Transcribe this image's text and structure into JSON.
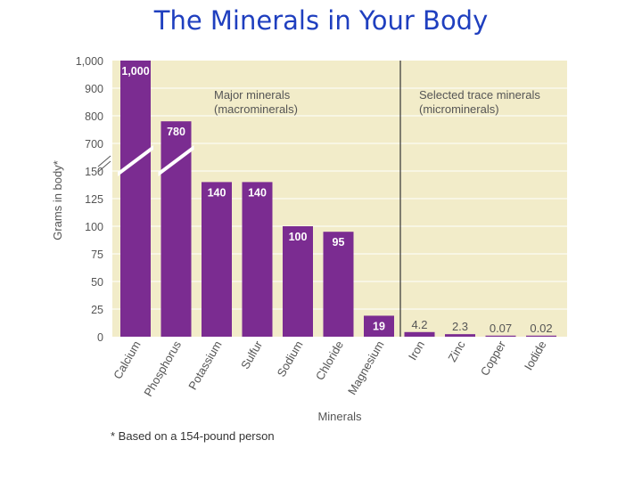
{
  "slide": {
    "title": "The Minerals in Your Body",
    "footnote": "* Based on a 154-pound person"
  },
  "chart_data": {
    "type": "bar",
    "title": "The Minerals in Your Body",
    "xlabel": "Minerals",
    "ylabel": "Grams in body*",
    "categories": [
      "Calcium",
      "Phosphorus",
      "Potassium",
      "Sulfur",
      "Sodium",
      "Chloride",
      "Magnesium",
      "Iron",
      "Zinc",
      "Copper",
      "Iodide"
    ],
    "values": [
      1000,
      780,
      140,
      140,
      100,
      95,
      19,
      4.2,
      2.3,
      0.07,
      0.02
    ],
    "value_labels": [
      "1,000",
      "780",
      "140",
      "140",
      "100",
      "95",
      "19",
      "4.2",
      "2.3",
      "0.07",
      "0.02"
    ],
    "y_ticks_lower": [
      "0",
      "25",
      "50",
      "75",
      "100",
      "125",
      "150"
    ],
    "y_ticks_upper": [
      "700",
      "800",
      "900",
      "1,000"
    ],
    "ylim_lower": [
      0,
      150
    ],
    "ylim_upper": [
      650,
      1000
    ],
    "axis_break": true,
    "groups": [
      {
        "label": "Major minerals\n(macrominerals)",
        "count": 7
      },
      {
        "label": "Selected trace minerals\n(microminerals)",
        "count": 4
      }
    ],
    "colors": {
      "bar": "#7b2c91",
      "plot_bg": "#f2ecc9",
      "grid": "#ffffff",
      "text": "#555555"
    }
  }
}
